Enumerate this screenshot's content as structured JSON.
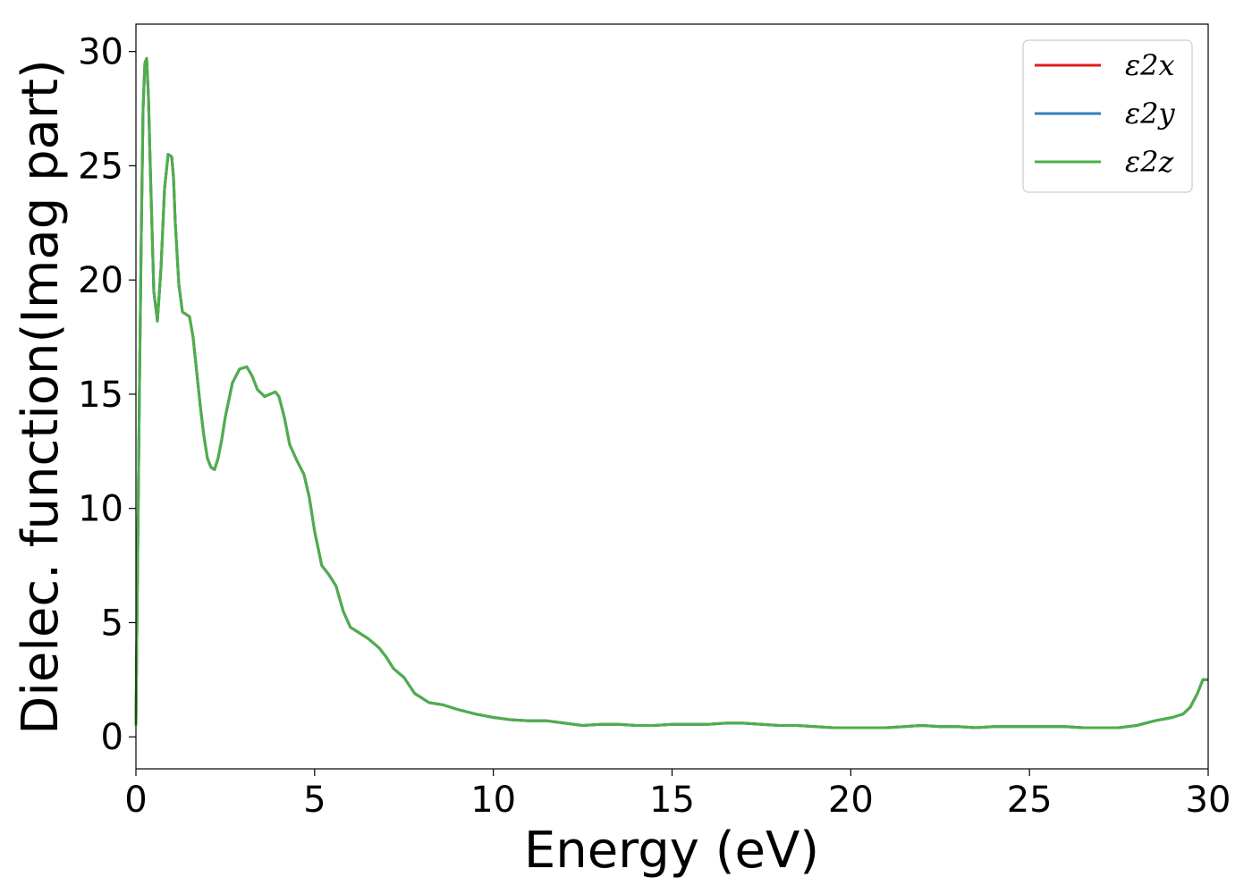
{
  "chart_data": {
    "type": "line",
    "title": "",
    "xlabel": "Energy (eV)",
    "ylabel": "Dielec. function(Imag part)",
    "xlim": [
      0,
      30
    ],
    "ylim": [
      -1.4,
      31.2
    ],
    "xticks": [
      0,
      5,
      10,
      15,
      20,
      25,
      30
    ],
    "yticks": [
      0,
      5,
      10,
      15,
      20,
      25,
      30
    ],
    "grid": false,
    "legend_position": "top-right",
    "x": [
      0.0,
      0.05,
      0.1,
      0.15,
      0.2,
      0.25,
      0.3,
      0.35,
      0.4,
      0.5,
      0.6,
      0.7,
      0.8,
      0.9,
      1.0,
      1.05,
      1.1,
      1.2,
      1.3,
      1.4,
      1.5,
      1.6,
      1.7,
      1.8,
      1.9,
      2.0,
      2.1,
      2.2,
      2.3,
      2.4,
      2.5,
      2.7,
      2.9,
      3.1,
      3.25,
      3.4,
      3.6,
      3.75,
      3.9,
      4.0,
      4.15,
      4.3,
      4.5,
      4.7,
      4.85,
      5.0,
      5.2,
      5.4,
      5.6,
      5.8,
      6.0,
      6.2,
      6.5,
      6.8,
      7.0,
      7.2,
      7.5,
      7.8,
      8.2,
      8.6,
      9.0,
      9.5,
      10.0,
      10.5,
      11.0,
      11.5,
      12.0,
      12.5,
      13.0,
      13.5,
      14.0,
      14.5,
      15.0,
      15.5,
      16.0,
      16.5,
      17.0,
      17.5,
      18.0,
      18.5,
      19.0,
      19.5,
      20.0,
      20.5,
      21.0,
      21.5,
      22.0,
      22.5,
      23.0,
      23.5,
      24.0,
      24.5,
      25.0,
      25.5,
      26.0,
      26.5,
      27.0,
      27.5,
      28.0,
      28.5,
      29.0,
      29.3,
      29.5,
      29.7,
      29.85,
      30.0
    ],
    "series": [
      {
        "name": "ε2x",
        "color": "#e41a1c",
        "values": [
          0.5,
          8.0,
          15.5,
          22.0,
          27.5,
          29.5,
          29.7,
          28.0,
          25.0,
          19.5,
          18.2,
          20.5,
          24.0,
          25.5,
          25.4,
          24.5,
          22.5,
          19.8,
          18.6,
          18.5,
          18.4,
          17.5,
          16.0,
          14.5,
          13.2,
          12.2,
          11.8,
          11.7,
          12.2,
          13.0,
          14.0,
          15.5,
          16.1,
          16.2,
          15.8,
          15.2,
          14.9,
          15.0,
          15.1,
          14.9,
          14.0,
          12.8,
          12.1,
          11.5,
          10.5,
          9.0,
          7.5,
          7.1,
          6.6,
          5.5,
          4.8,
          4.6,
          4.3,
          3.9,
          3.5,
          3.0,
          2.6,
          1.9,
          1.5,
          1.4,
          1.2,
          1.0,
          0.85,
          0.75,
          0.7,
          0.7,
          0.6,
          0.5,
          0.55,
          0.55,
          0.5,
          0.5,
          0.55,
          0.55,
          0.55,
          0.6,
          0.6,
          0.55,
          0.5,
          0.5,
          0.45,
          0.4,
          0.4,
          0.4,
          0.4,
          0.45,
          0.5,
          0.45,
          0.45,
          0.4,
          0.45,
          0.45,
          0.45,
          0.45,
          0.45,
          0.4,
          0.4,
          0.4,
          0.5,
          0.7,
          0.85,
          1.0,
          1.3,
          1.9,
          2.5,
          2.5
        ]
      },
      {
        "name": "ε2y",
        "color": "#377eb8",
        "values": [
          0.5,
          8.0,
          15.5,
          22.0,
          27.5,
          29.5,
          29.7,
          28.0,
          25.0,
          19.5,
          18.2,
          20.5,
          24.0,
          25.5,
          25.4,
          24.5,
          22.5,
          19.8,
          18.6,
          18.5,
          18.4,
          17.5,
          16.0,
          14.5,
          13.2,
          12.2,
          11.8,
          11.7,
          12.2,
          13.0,
          14.0,
          15.5,
          16.1,
          16.2,
          15.8,
          15.2,
          14.9,
          15.0,
          15.1,
          14.9,
          14.0,
          12.8,
          12.1,
          11.5,
          10.5,
          9.0,
          7.5,
          7.1,
          6.6,
          5.5,
          4.8,
          4.6,
          4.3,
          3.9,
          3.5,
          3.0,
          2.6,
          1.9,
          1.5,
          1.4,
          1.2,
          1.0,
          0.85,
          0.75,
          0.7,
          0.7,
          0.6,
          0.5,
          0.55,
          0.55,
          0.5,
          0.5,
          0.55,
          0.55,
          0.55,
          0.6,
          0.6,
          0.55,
          0.5,
          0.5,
          0.45,
          0.4,
          0.4,
          0.4,
          0.4,
          0.45,
          0.5,
          0.45,
          0.45,
          0.4,
          0.45,
          0.45,
          0.45,
          0.45,
          0.45,
          0.4,
          0.4,
          0.4,
          0.5,
          0.7,
          0.85,
          1.0,
          1.3,
          1.9,
          2.5,
          2.5
        ]
      },
      {
        "name": "ε2z",
        "color": "#4daf4a",
        "values": [
          0.5,
          8.0,
          15.5,
          22.0,
          27.5,
          29.5,
          29.7,
          28.0,
          25.0,
          19.5,
          18.2,
          20.5,
          24.0,
          25.5,
          25.4,
          24.5,
          22.5,
          19.8,
          18.6,
          18.5,
          18.4,
          17.5,
          16.0,
          14.5,
          13.2,
          12.2,
          11.8,
          11.7,
          12.2,
          13.0,
          14.0,
          15.5,
          16.1,
          16.2,
          15.8,
          15.2,
          14.9,
          15.0,
          15.1,
          14.9,
          14.0,
          12.8,
          12.1,
          11.5,
          10.5,
          9.0,
          7.5,
          7.1,
          6.6,
          5.5,
          4.8,
          4.6,
          4.3,
          3.9,
          3.5,
          3.0,
          2.6,
          1.9,
          1.5,
          1.4,
          1.2,
          1.0,
          0.85,
          0.75,
          0.7,
          0.7,
          0.6,
          0.5,
          0.55,
          0.55,
          0.5,
          0.5,
          0.55,
          0.55,
          0.55,
          0.6,
          0.6,
          0.55,
          0.5,
          0.5,
          0.45,
          0.4,
          0.4,
          0.4,
          0.4,
          0.45,
          0.5,
          0.45,
          0.45,
          0.4,
          0.45,
          0.45,
          0.45,
          0.45,
          0.45,
          0.4,
          0.4,
          0.4,
          0.5,
          0.7,
          0.85,
          1.0,
          1.3,
          1.9,
          2.5,
          2.5
        ]
      }
    ]
  }
}
